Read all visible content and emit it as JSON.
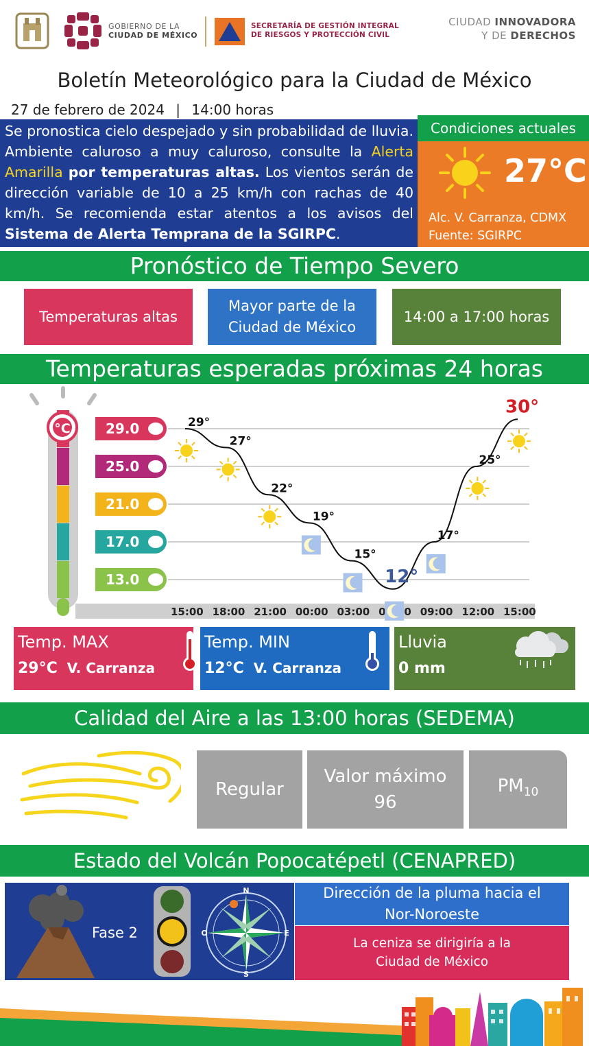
{
  "header": {
    "gov_line1": "GOBIERNO DE LA",
    "gov_line2": "CIUDAD DE MÉXICO",
    "sec_line1": "SECRETARÍA DE GESTIÓN INTEGRAL",
    "sec_line2": "DE RIESGOS Y PROTECCIÓN CIVIL",
    "slogan_a": "CIUDAD ",
    "slogan_b": "INNOVADORA",
    "slogan_c": "Y DE ",
    "slogan_d": "DERECHOS"
  },
  "title": "Boletín Meteorológico para la Ciudad de México",
  "date": "27 de febrero de 2024",
  "separator": "|",
  "time": "14:00 horas",
  "forecast": {
    "p1": "Se pronostica cielo despejado y sin probabilidad de lluvia. Ambiente caluroso a muy caluroso, consulte la ",
    "alert": "Alerta Amarilla",
    "p2": " ",
    "bold1": "por temperaturas altas.",
    "p3": " Los vientos serán de dirección variable de 10 a 25 km/h con rachas de 40 km/h. Se recomienda estar atentos a los avisos del ",
    "bold2": "Sistema de Alerta Temprana de la SGIRPC",
    "p4": "."
  },
  "current": {
    "heading": "Condiciones actuales",
    "temp": "27°C",
    "location": "Alc. V. Carranza, CDMX",
    "source": "Fuente: SGIRPC"
  },
  "severe": {
    "heading": "Pronóstico de Tiempo Severo",
    "phenomenon": "Temperaturas altas",
    "area_l1": "Mayor parte de la",
    "area_l2": "Ciudad de México",
    "period": "14:00 a 17:00 horas",
    "colors": {
      "phenomenon": "#d8365c",
      "area": "#2f73c6",
      "period": "#58813a"
    }
  },
  "temps": {
    "heading": "Temperaturas esperadas próximas 24 horas",
    "scale_unit": "°C",
    "scale_labels": [
      "29.0",
      "25.0",
      "21.0",
      "17.0",
      "13.0"
    ],
    "scale_colors": [
      "#d8365c",
      "#b3297a",
      "#f3b31a",
      "#25a7a0",
      "#8bc24a"
    ]
  },
  "chart_data": {
    "type": "line",
    "x": [
      "15:00",
      "18:00",
      "21:00",
      "00:00",
      "03:00",
      "06:00",
      "09:00",
      "12:00",
      "15:00"
    ],
    "points": [
      {
        "label": "29°",
        "value": 29,
        "icon": "sun-icon"
      },
      {
        "label": "27°",
        "value": 27,
        "icon": "sun-icon"
      },
      {
        "label": "22°",
        "value": 22,
        "icon": "sun-icon"
      },
      {
        "label": "19°",
        "value": 19,
        "icon": "moon-icon"
      },
      {
        "label": "15°",
        "value": 15,
        "icon": "moon-icon"
      },
      {
        "label": "12°",
        "value": 12,
        "icon": "moon-icon"
      },
      {
        "label": "17°",
        "value": 17,
        "icon": "moon-icon"
      },
      {
        "label": "25°",
        "value": 25,
        "icon": "sun-icon"
      },
      {
        "label": "30°",
        "value": 30,
        "icon": "sun-icon"
      }
    ],
    "ylim": [
      11,
      30
    ],
    "highlight": {
      "max_color": "#d51f26",
      "min_color": "#3c5a99"
    },
    "grid": true,
    "title": "",
    "xlabel": "",
    "ylabel": ""
  },
  "stats": {
    "max_label": "Temp. MAX",
    "max_value": "29°C",
    "max_place": "V. Carranza",
    "min_label": "Temp. MIN",
    "min_value": "12°C",
    "min_place": "V. Carranza",
    "rain_label": "Lluvia",
    "rain_value": "0 mm",
    "colors": {
      "max": "#d8365c",
      "min": "#1f6bc2",
      "rain": "#58813a"
    }
  },
  "air": {
    "heading": "Calidad del Aire a las 13:00 horas (SEDEMA)",
    "quality": "Regular",
    "max_label": "Valor máximo",
    "max_value": "96",
    "pollutant": "PM",
    "pollutant_sub": "10"
  },
  "volcano": {
    "heading": "Estado del Volcán Popocatépetl (CENAPRED)",
    "phase": "Fase 2",
    "compass": {
      "n": "N",
      "s": "S",
      "e": "E",
      "o": "O"
    },
    "plume_l1": "Dirección de la pluma hacia el",
    "plume_l2": "Nor-Noroeste",
    "ash_l1": "La ceniza se dirigiría a la",
    "ash_l2": "Ciudad de México"
  }
}
